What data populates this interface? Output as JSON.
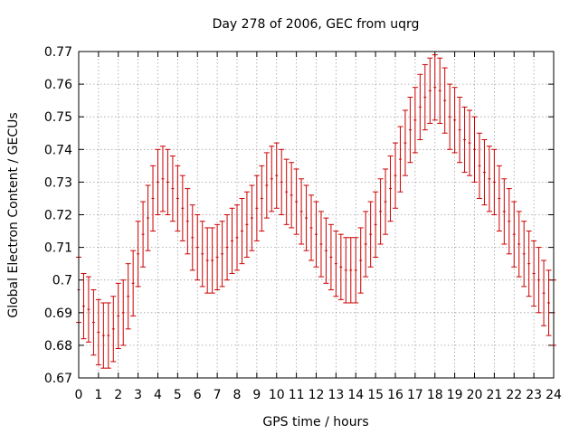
{
  "chart_data": {
    "type": "line",
    "title": "Day 278 of 2006, GEC from uqrg",
    "xlabel": "GPS time / hours",
    "ylabel": "Global Electron Content / GECUs",
    "xlim": [
      0,
      24
    ],
    "ylim": [
      0.67,
      0.77
    ],
    "x_ticks": [
      "0",
      "1",
      "2",
      "3",
      "4",
      "5",
      "6",
      "7",
      "8",
      "9",
      "10",
      "11",
      "12",
      "13",
      "14",
      "15",
      "16",
      "17",
      "18",
      "19",
      "20",
      "21",
      "22",
      "23",
      "24"
    ],
    "y_ticks": [
      "0.67",
      "0.68",
      "0.69",
      "0.7",
      "0.71",
      "0.72",
      "0.73",
      "0.74",
      "0.75",
      "0.76",
      "0.77"
    ],
    "grid": true,
    "error_bar_half_width": 0.01,
    "series_color": "#cc0000",
    "grid_color": "#a0a0a0",
    "series": [
      {
        "x": [
          0,
          0.25,
          0.5,
          0.75,
          1,
          1.25,
          1.5,
          1.75,
          2,
          2.25,
          2.5,
          2.75,
          3,
          3.25,
          3.5,
          3.75,
          4,
          4.25,
          4.5,
          4.75,
          5,
          5.25,
          5.5,
          5.75,
          6,
          6.25,
          6.5,
          6.75,
          7,
          7.25,
          7.5,
          7.75,
          8,
          8.25,
          8.5,
          8.75,
          9,
          9.25,
          9.5,
          9.75,
          10,
          10.25,
          10.5,
          10.75,
          11,
          11.25,
          11.5,
          11.75,
          12,
          12.25,
          12.5,
          12.75,
          13,
          13.25,
          13.5,
          13.75,
          14,
          14.25,
          14.5,
          14.75,
          15,
          15.25,
          15.5,
          15.75,
          16,
          16.25,
          16.5,
          16.75,
          17,
          17.25,
          17.5,
          17.75,
          18,
          18.25,
          18.5,
          18.75,
          19,
          19.25,
          19.5,
          19.75,
          20,
          20.25,
          20.5,
          20.75,
          21,
          21.25,
          21.5,
          21.75,
          22,
          22.25,
          22.5,
          22.75,
          23,
          23.25,
          23.5,
          23.75,
          24
        ],
        "y": [
          0.697,
          0.692,
          0.691,
          0.687,
          0.684,
          0.683,
          0.683,
          0.685,
          0.689,
          0.69,
          0.695,
          0.699,
          0.708,
          0.714,
          0.719,
          0.725,
          0.73,
          0.731,
          0.73,
          0.728,
          0.725,
          0.722,
          0.718,
          0.713,
          0.71,
          0.708,
          0.706,
          0.706,
          0.707,
          0.708,
          0.71,
          0.712,
          0.713,
          0.715,
          0.717,
          0.719,
          0.722,
          0.725,
          0.729,
          0.731,
          0.732,
          0.73,
          0.727,
          0.726,
          0.724,
          0.721,
          0.719,
          0.716,
          0.714,
          0.711,
          0.709,
          0.707,
          0.705,
          0.704,
          0.703,
          0.703,
          0.703,
          0.706,
          0.711,
          0.714,
          0.717,
          0.721,
          0.724,
          0.728,
          0.732,
          0.737,
          0.742,
          0.746,
          0.749,
          0.753,
          0.756,
          0.758,
          0.759,
          0.758,
          0.755,
          0.75,
          0.749,
          0.746,
          0.743,
          0.742,
          0.74,
          0.735,
          0.733,
          0.731,
          0.73,
          0.725,
          0.721,
          0.718,
          0.714,
          0.711,
          0.708,
          0.705,
          0.702,
          0.7,
          0.696,
          0.693,
          0.69
        ]
      }
    ]
  }
}
